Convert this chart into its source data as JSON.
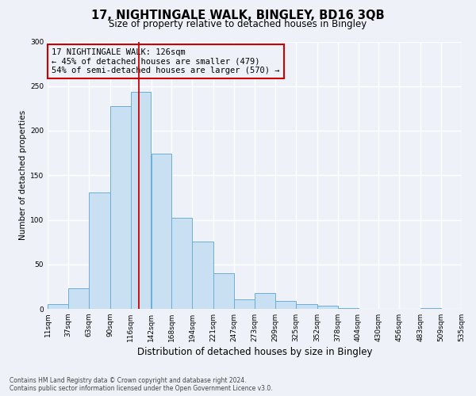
{
  "title": "17, NIGHTINGALE WALK, BINGLEY, BD16 3QB",
  "subtitle": "Size of property relative to detached houses in Bingley",
  "xlabel": "Distribution of detached houses by size in Bingley",
  "ylabel": "Number of detached properties",
  "bin_edges": [
    11,
    37,
    63,
    90,
    116,
    142,
    168,
    194,
    221,
    247,
    273,
    299,
    325,
    352,
    378,
    404,
    430,
    456,
    483,
    509,
    535
  ],
  "bin_labels": [
    "11sqm",
    "37sqm",
    "63sqm",
    "90sqm",
    "116sqm",
    "142sqm",
    "168sqm",
    "194sqm",
    "221sqm",
    "247sqm",
    "273sqm",
    "299sqm",
    "325sqm",
    "352sqm",
    "378sqm",
    "404sqm",
    "430sqm",
    "456sqm",
    "483sqm",
    "509sqm",
    "535sqm"
  ],
  "bar_heights": [
    5,
    23,
    131,
    228,
    244,
    174,
    102,
    76,
    40,
    11,
    18,
    9,
    5,
    4,
    1,
    0,
    0,
    0,
    1,
    0
  ],
  "bar_color": "#c9dff2",
  "bar_edge_color": "#6aaed6",
  "vline_x": 126,
  "vline_color": "#cc0000",
  "ylim": [
    0,
    300
  ],
  "yticks": [
    0,
    50,
    100,
    150,
    200,
    250,
    300
  ],
  "annotation_line1": "17 NIGHTINGALE WALK: 126sqm",
  "annotation_line2": "← 45% of detached houses are smaller (479)",
  "annotation_line3": "54% of semi-detached houses are larger (570) →",
  "annotation_box_color": "#cc0000",
  "footer_line1": "Contains HM Land Registry data © Crown copyright and database right 2024.",
  "footer_line2": "Contains public sector information licensed under the Open Government Licence v3.0.",
  "background_color": "#eef2f8",
  "grid_color": "#ffffff",
  "title_fontsize": 10.5,
  "subtitle_fontsize": 8.5,
  "ylabel_fontsize": 7.5,
  "xlabel_fontsize": 8.5,
  "tick_fontsize": 6.5,
  "annotation_fontsize": 7.5,
  "footer_fontsize": 5.5
}
